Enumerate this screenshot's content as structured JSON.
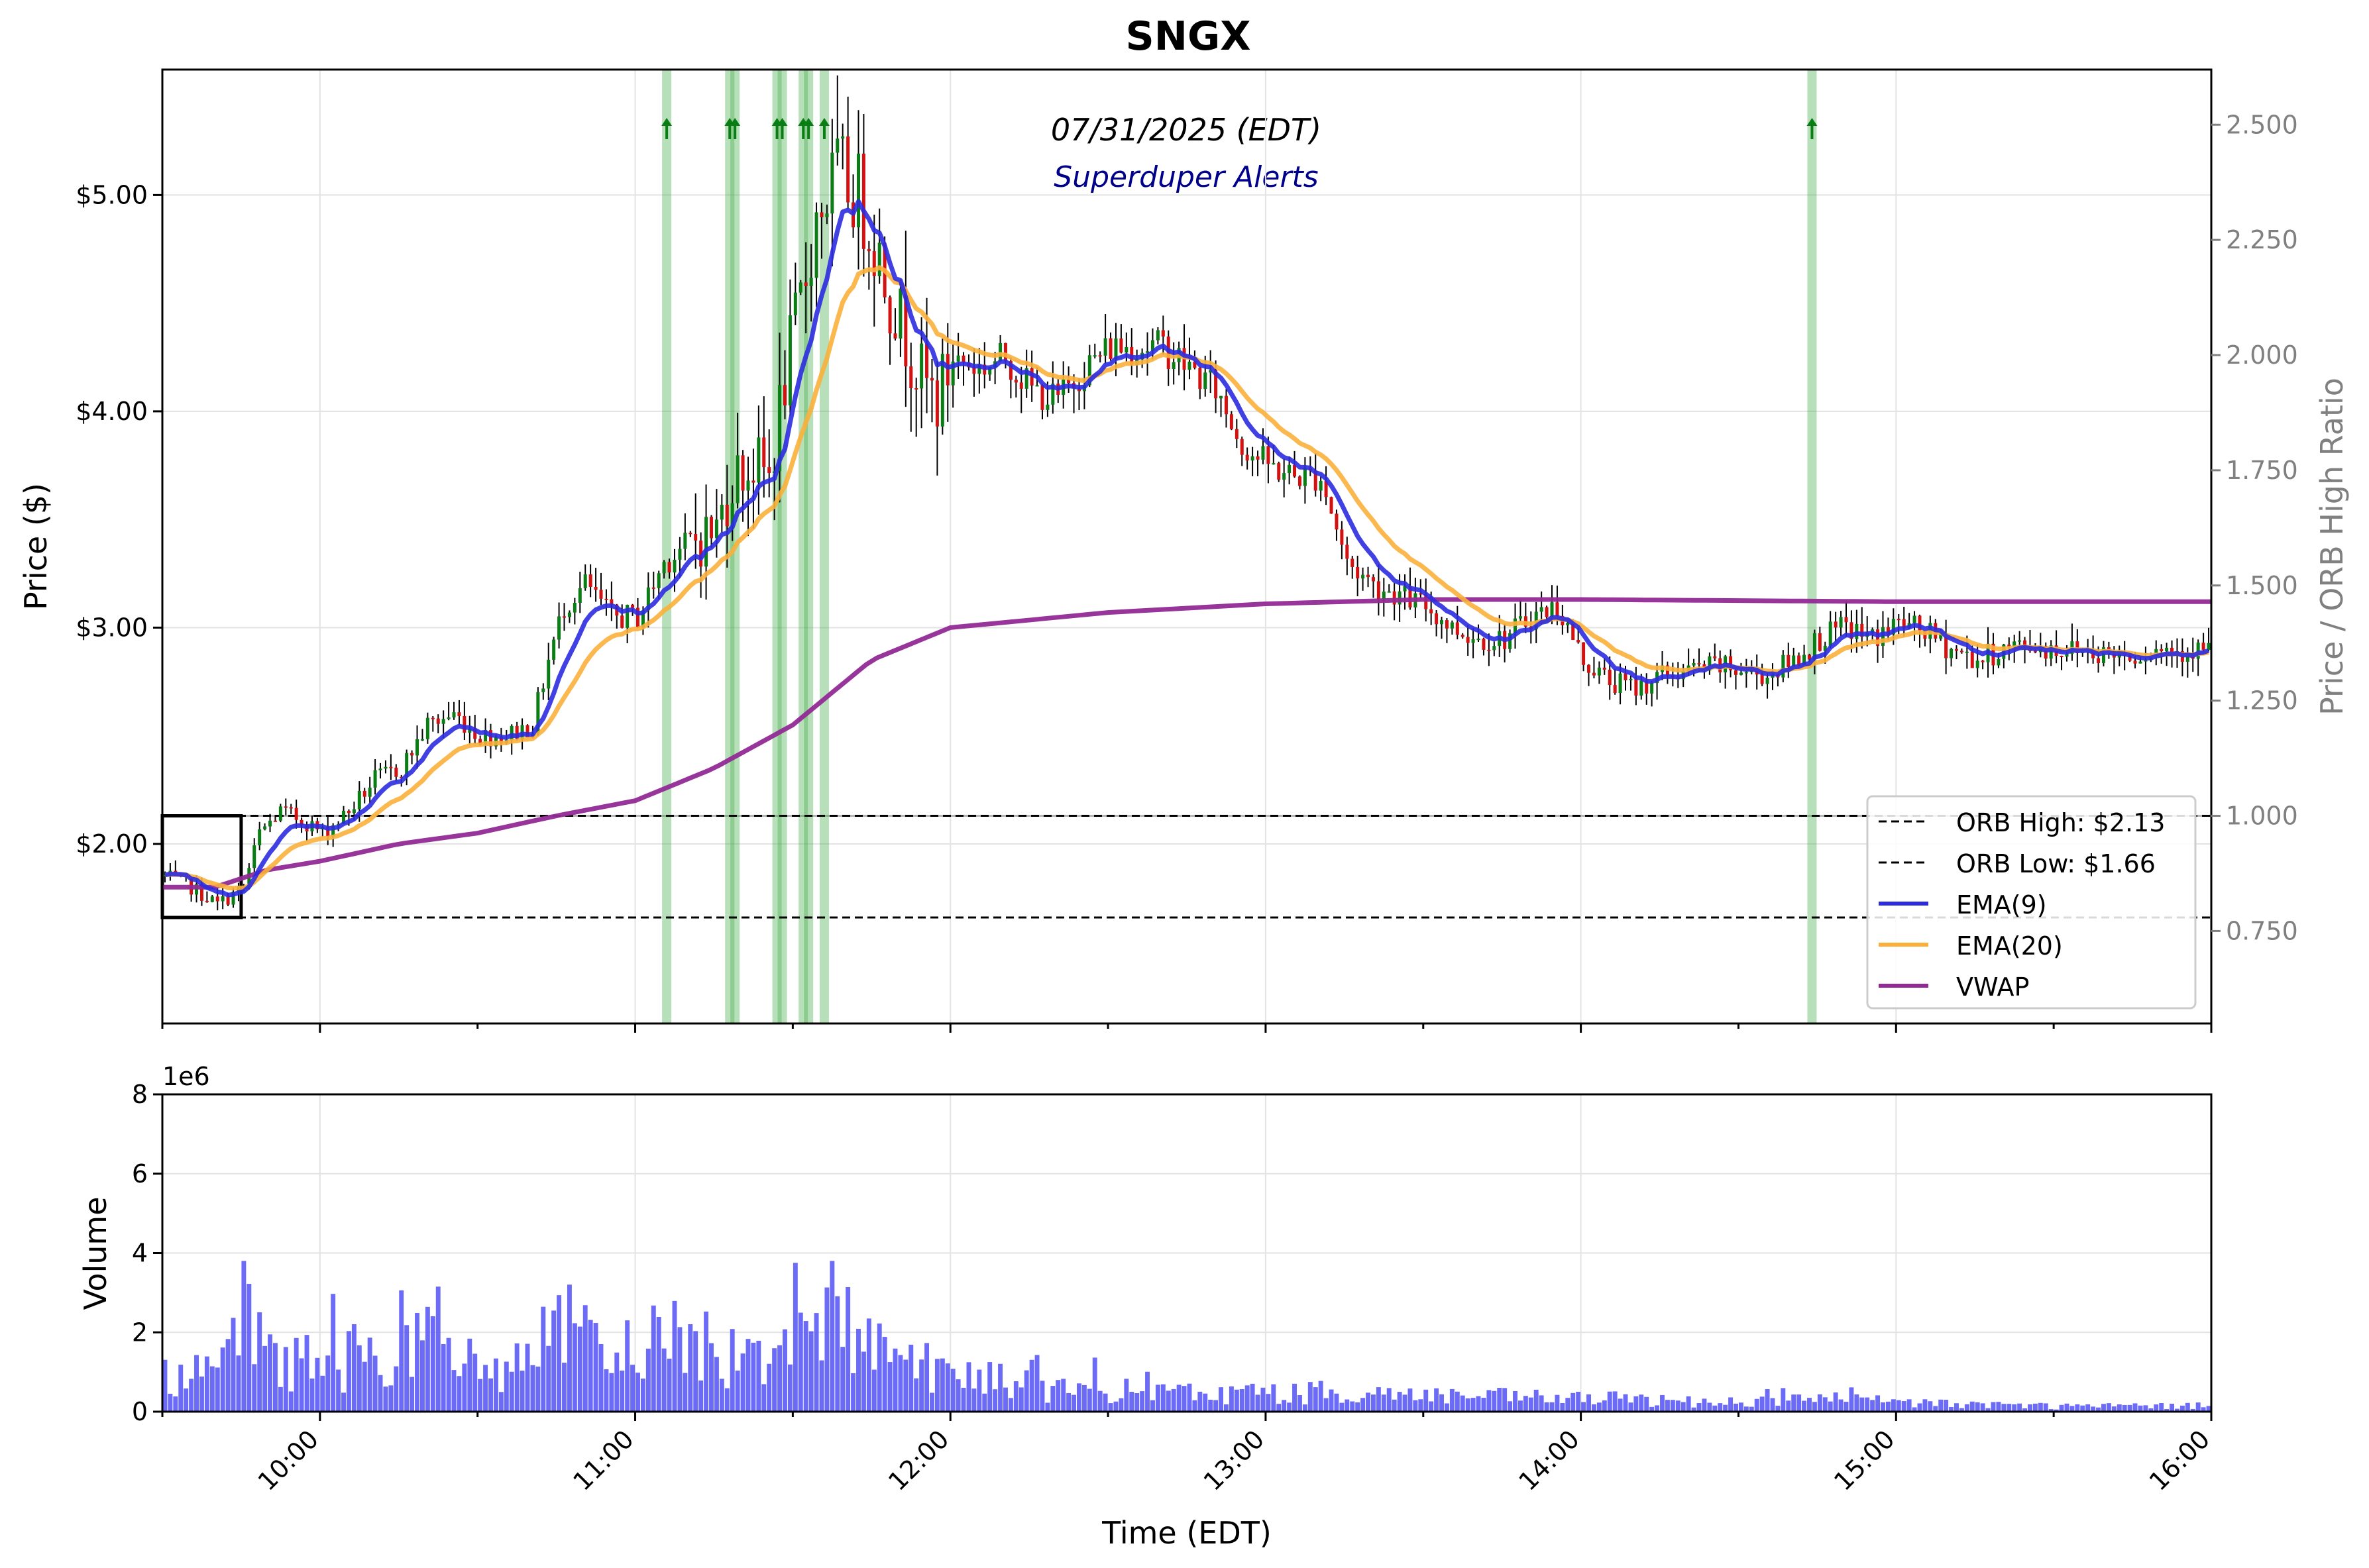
{
  "chart_data": [
    {
      "type": "candlestick",
      "title": "SNGX",
      "subtitle": "07/31/2025 (EDT)",
      "annotation": "Superduper Alerts",
      "ylabel": "Price ($)",
      "y2label": "Price / ORB High Ratio",
      "ylim": [
        1.17,
        5.58
      ],
      "y_ticks": [
        2.0,
        3.0,
        4.0,
        5.0
      ],
      "y_tick_labels": [
        "$2.00",
        "$3.00",
        "$4.00",
        "$5.00"
      ],
      "y2lim": [
        0.5493,
        2.6197
      ],
      "y2_ticks": [
        0.75,
        1.0,
        1.25,
        1.5,
        1.75,
        2.0,
        2.25,
        2.5
      ],
      "y2_tick_labels": [
        "0.750",
        "1.000",
        "1.250",
        "1.500",
        "1.750",
        "2.000",
        "2.250",
        "2.500"
      ],
      "x_range": [
        "09:30",
        "16:00"
      ],
      "orb": {
        "high": 2.13,
        "low": 1.66,
        "start": "09:30",
        "end": "09:45"
      },
      "ratio_reference": 1.0,
      "alerts_times": [
        "11:06",
        "11:18",
        "11:19",
        "11:27",
        "11:28",
        "11:32",
        "11:33",
        "11:36",
        "14:44"
      ],
      "price_path": [
        [
          "09:30",
          1.85
        ],
        [
          "09:35",
          1.8
        ],
        [
          "09:40",
          1.72
        ],
        [
          "09:45",
          1.8
        ],
        [
          "09:48",
          2.05
        ],
        [
          "09:52",
          2.15
        ],
        [
          "09:57",
          2.1
        ],
        [
          "10:00",
          2.05
        ],
        [
          "10:05",
          2.15
        ],
        [
          "10:10",
          2.3
        ],
        [
          "10:15",
          2.35
        ],
        [
          "10:20",
          2.55
        ],
        [
          "10:25",
          2.6
        ],
        [
          "10:30",
          2.5
        ],
        [
          "10:35",
          2.5
        ],
        [
          "10:40",
          2.55
        ],
        [
          "10:43",
          2.85
        ],
        [
          "10:46",
          3.1
        ],
        [
          "10:50",
          3.2
        ],
        [
          "10:55",
          3.05
        ],
        [
          "11:00",
          3.05
        ],
        [
          "11:05",
          3.3
        ],
        [
          "11:10",
          3.4
        ],
        [
          "11:15",
          3.45
        ],
        [
          "11:18",
          3.7
        ],
        [
          "11:22",
          3.75
        ],
        [
          "11:25",
          3.7
        ],
        [
          "11:28",
          4.15
        ],
        [
          "11:31",
          4.5
        ],
        [
          "11:34",
          4.9
        ],
        [
          "11:38",
          5.1
        ],
        [
          "11:42",
          5.0
        ],
        [
          "11:45",
          4.8
        ],
        [
          "11:48",
          4.55
        ],
        [
          "11:51",
          4.35
        ],
        [
          "11:54",
          4.15
        ],
        [
          "11:57",
          4.05
        ],
        [
          "12:00",
          4.25
        ],
        [
          "12:05",
          4.2
        ],
        [
          "12:10",
          4.25
        ],
        [
          "12:15",
          4.1
        ],
        [
          "12:20",
          4.05
        ],
        [
          "12:25",
          4.2
        ],
        [
          "12:30",
          4.3
        ],
        [
          "12:35",
          4.3
        ],
        [
          "12:40",
          4.3
        ],
        [
          "12:45",
          4.2
        ],
        [
          "12:50",
          4.1
        ],
        [
          "12:55",
          3.85
        ],
        [
          "13:00",
          3.75
        ],
        [
          "13:05",
          3.7
        ],
        [
          "13:10",
          3.7
        ],
        [
          "13:15",
          3.3
        ],
        [
          "13:20",
          3.2
        ],
        [
          "13:25",
          3.15
        ],
        [
          "13:30",
          3.1
        ],
        [
          "13:35",
          3.0
        ],
        [
          "13:40",
          2.95
        ],
        [
          "13:45",
          2.95
        ],
        [
          "13:50",
          3.05
        ],
        [
          "13:55",
          3.1
        ],
        [
          "14:00",
          2.85
        ],
        [
          "14:05",
          2.75
        ],
        [
          "14:10",
          2.72
        ],
        [
          "14:15",
          2.78
        ],
        [
          "14:20",
          2.8
        ],
        [
          "14:25",
          2.82
        ],
        [
          "14:30",
          2.8
        ],
        [
          "14:35",
          2.78
        ],
        [
          "14:40",
          2.85
        ],
        [
          "14:45",
          2.95
        ],
        [
          "14:50",
          3.0
        ],
        [
          "14:55",
          2.95
        ],
        [
          "15:00",
          3.02
        ],
        [
          "15:05",
          2.98
        ],
        [
          "15:10",
          2.9
        ],
        [
          "15:15",
          2.85
        ],
        [
          "15:20",
          2.9
        ],
        [
          "15:25",
          2.92
        ],
        [
          "15:30",
          2.9
        ],
        [
          "15:35",
          2.9
        ],
        [
          "15:40",
          2.88
        ],
        [
          "15:45",
          2.88
        ],
        [
          "15:50",
          2.9
        ],
        [
          "15:55",
          2.9
        ],
        [
          "16:00",
          2.9
        ]
      ],
      "series": [
        {
          "name": "ORB High: $2.13",
          "style": "dashed",
          "color": "#000000"
        },
        {
          "name": "ORB Low: $1.66",
          "style": "dashed",
          "color": "#000000"
        },
        {
          "name": "EMA(9)",
          "color": "#2b2be0",
          "period": 9
        },
        {
          "name": "EMA(20)",
          "color": "#fbb03b",
          "period": 20
        },
        {
          "name": "VWAP",
          "color": "#912a96",
          "values": [
            [
              "09:30",
              1.8
            ],
            [
              "09:40",
              1.8
            ],
            [
              "09:50",
              1.88
            ],
            [
              "10:00",
              1.92
            ],
            [
              "10:15",
              2.0
            ],
            [
              "10:30",
              2.05
            ],
            [
              "10:45",
              2.13
            ],
            [
              "11:00",
              2.2
            ],
            [
              "11:15",
              2.35
            ],
            [
              "11:30",
              2.55
            ],
            [
              "11:45",
              2.85
            ],
            [
              "12:00",
              3.0
            ],
            [
              "12:30",
              3.07
            ],
            [
              "13:00",
              3.11
            ],
            [
              "13:30",
              3.13
            ],
            [
              "14:00",
              3.13
            ],
            [
              "15:00",
              3.12
            ],
            [
              "16:00",
              3.12
            ]
          ]
        }
      ],
      "legend_position": "lower-right",
      "grid": true
    },
    {
      "type": "bar",
      "ylabel": "Volume",
      "xlabel": "Time (EDT)",
      "offset_label": "1e6",
      "ylim": [
        0,
        8
      ],
      "y_ticks": [
        0,
        2,
        4,
        6,
        8
      ],
      "x_ticks": [
        "10:00",
        "11:00",
        "12:00",
        "13:00",
        "14:00",
        "15:00",
        "16:00"
      ],
      "volume_profile_millions": [
        [
          "09:30",
          1.0
        ],
        [
          "09:40",
          0.9
        ],
        [
          "09:45",
          2.6
        ],
        [
          "09:50",
          1.6
        ],
        [
          "10:00",
          1.2
        ],
        [
          "10:10",
          1.6
        ],
        [
          "10:20",
          1.8
        ],
        [
          "10:30",
          1.1
        ],
        [
          "10:40",
          1.5
        ],
        [
          "10:45",
          2.3
        ],
        [
          "10:55",
          1.3
        ],
        [
          "11:05",
          2.2
        ],
        [
          "11:15",
          1.5
        ],
        [
          "11:25",
          1.8
        ],
        [
          "11:33",
          2.8
        ],
        [
          "11:40",
          2.3
        ],
        [
          "11:50",
          1.6
        ],
        [
          "12:00",
          1.0
        ],
        [
          "12:20",
          0.6
        ],
        [
          "12:40",
          0.5
        ],
        [
          "13:00",
          0.5
        ],
        [
          "13:20",
          0.5
        ],
        [
          "13:40",
          0.4
        ],
        [
          "14:00",
          0.35
        ],
        [
          "14:30",
          0.25
        ],
        [
          "14:45",
          0.35
        ],
        [
          "15:00",
          0.25
        ],
        [
          "15:30",
          0.15
        ],
        [
          "16:00",
          0.15
        ]
      ],
      "color": "#5b5bf7",
      "grid": true
    }
  ]
}
